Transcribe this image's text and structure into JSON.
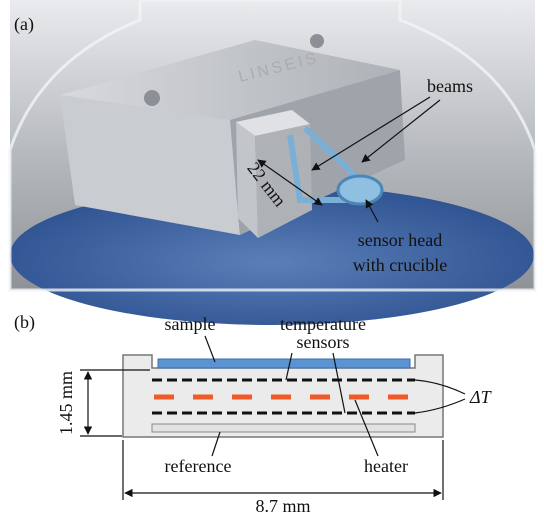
{
  "panel_a": {
    "label": "(a)",
    "logo": "LINSEIS",
    "beams": "beams",
    "length": "22 mm",
    "sensor_head": [
      "sensor head",
      "with crucible"
    ]
  },
  "panel_b": {
    "label": "(b)",
    "sample": "sample",
    "temperature_sensors": [
      "temperature",
      "sensors"
    ],
    "height": "1.45 mm",
    "delta_t": "ΔT",
    "reference": "reference",
    "heater": "heater",
    "width": "8.7 mm"
  }
}
